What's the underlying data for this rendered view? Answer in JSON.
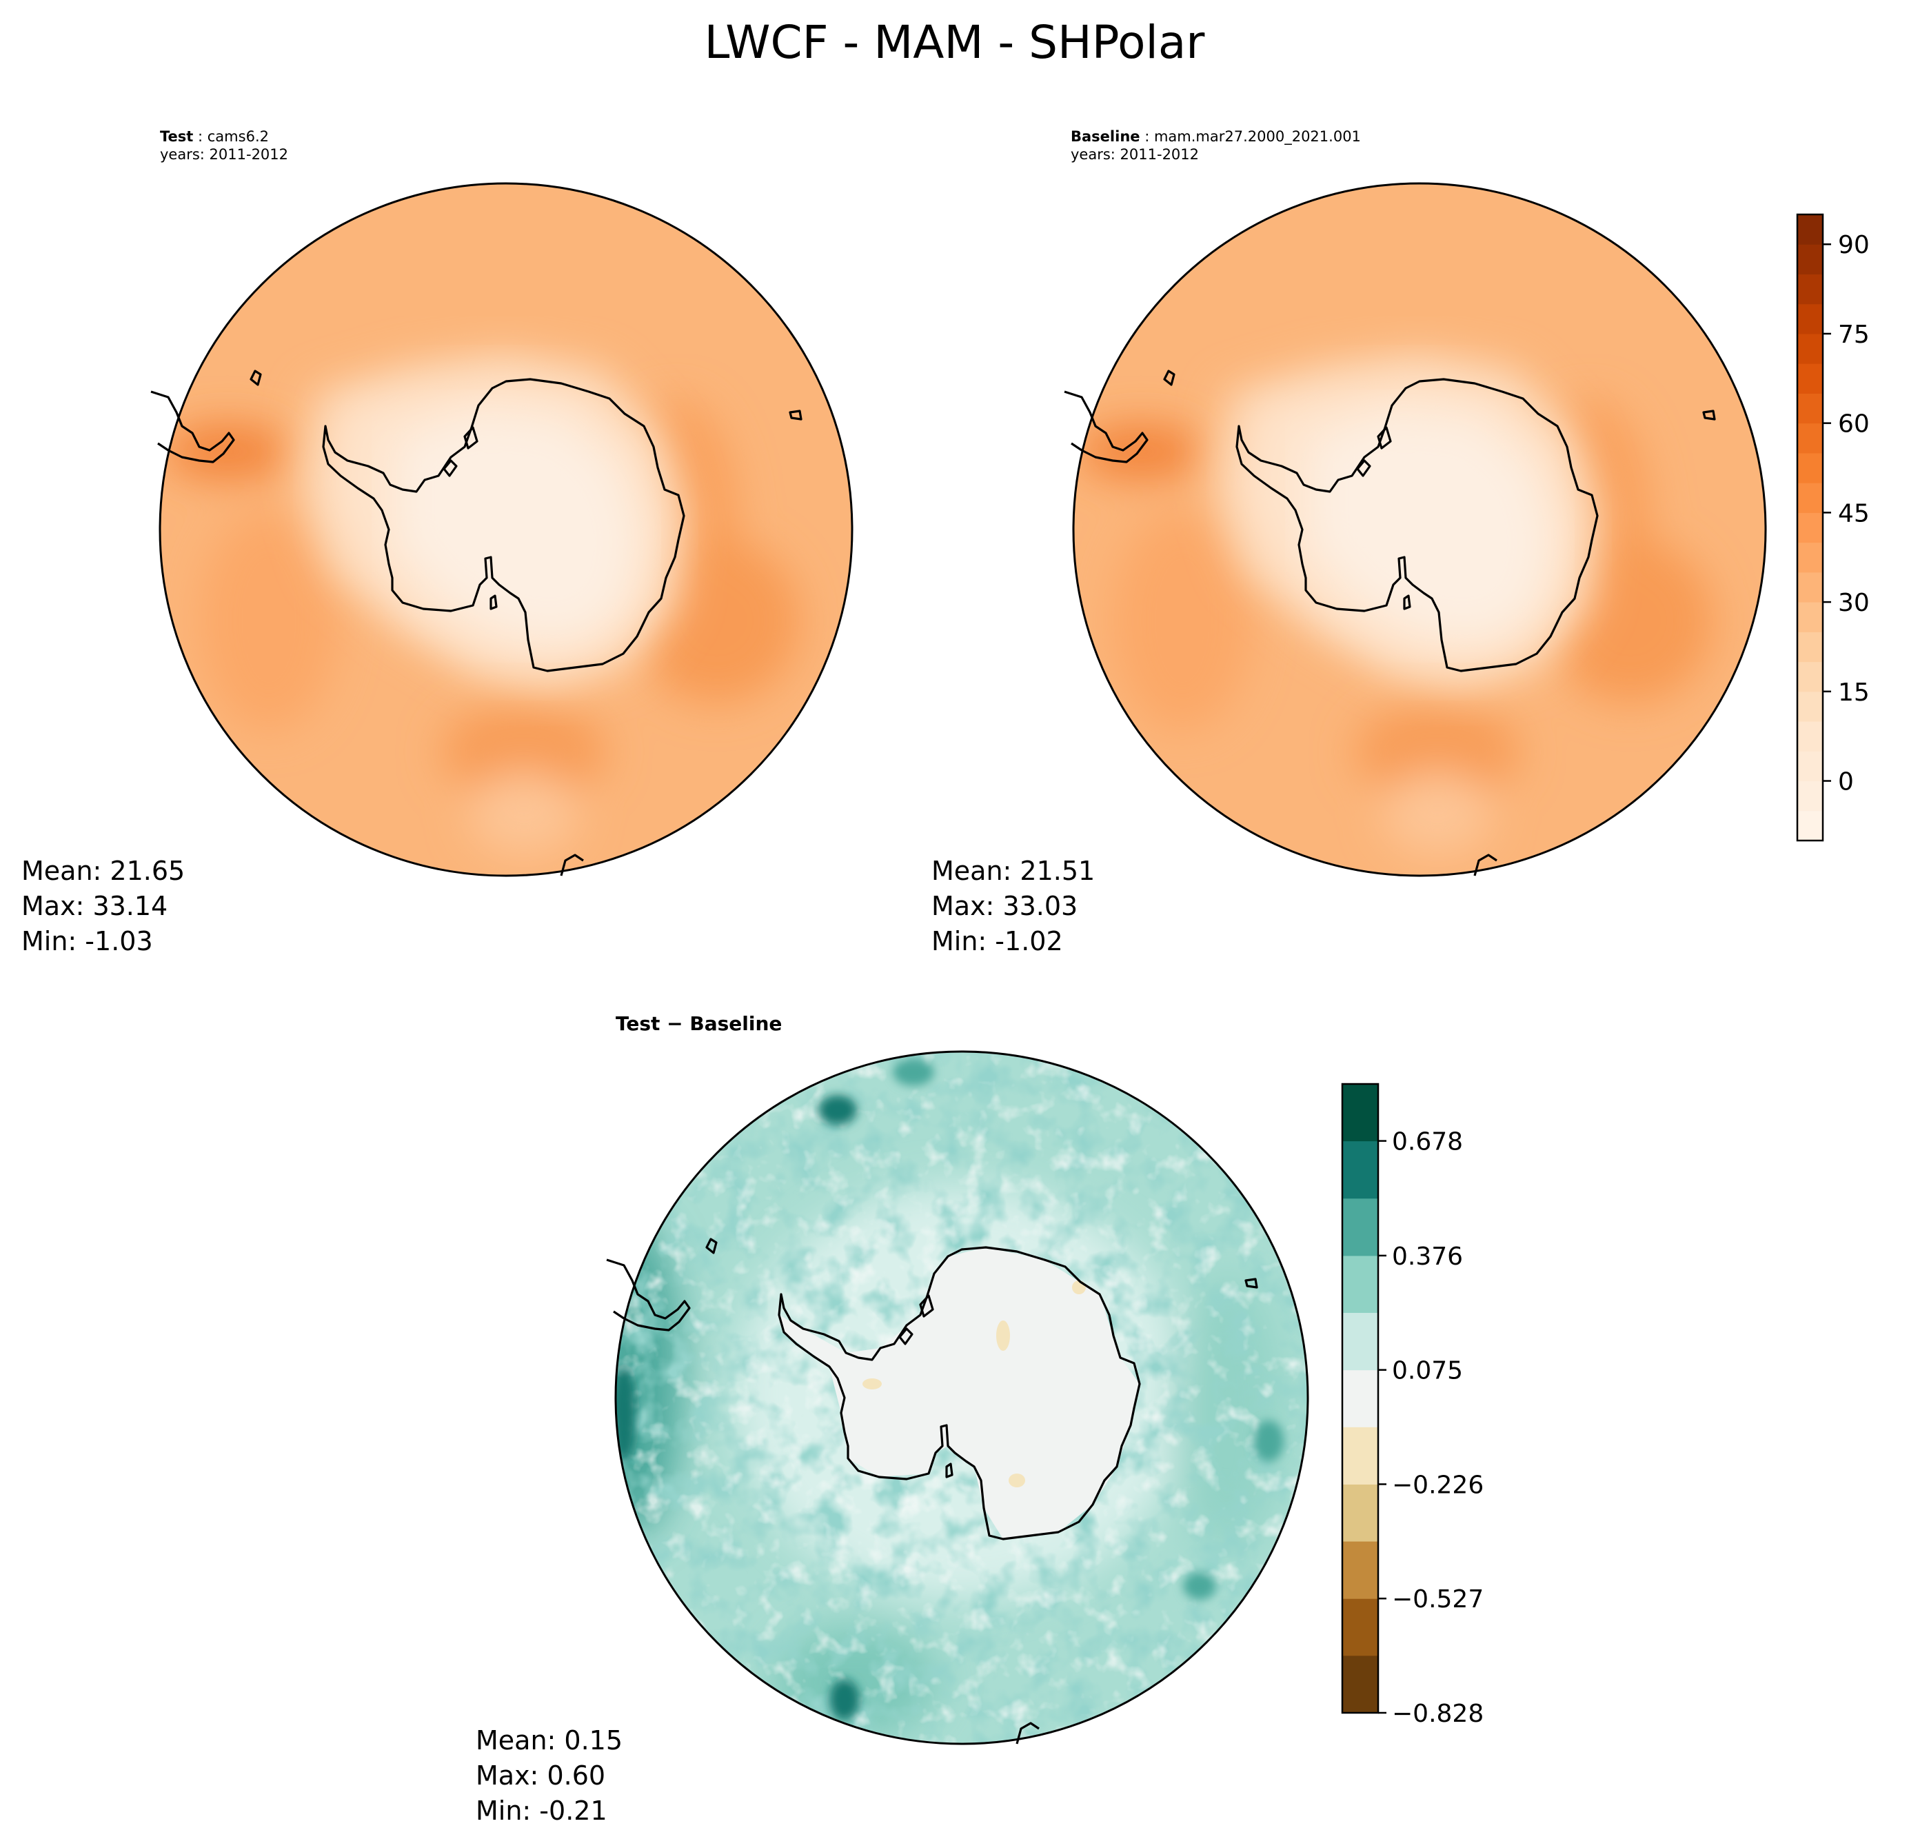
{
  "figure_title": "LWCF - MAM - SHPolar",
  "panels": {
    "test": {
      "case_label": "Test",
      "case_name": "cams6.2",
      "years": "years: 2011-2012",
      "stats": {
        "mean": "Mean: 21.65",
        "max": "Max: 33.14",
        "min": "Min: -1.03"
      }
    },
    "baseline": {
      "case_label": "Baseline",
      "case_name": "mam.mar27.2000_2021.001",
      "years": "years: 2011-2012",
      "stats": {
        "mean": "Mean: 21.51",
        "max": "Max: 33.03",
        "min": "Min: -1.02"
      }
    },
    "diff": {
      "title": "Test − Baseline",
      "stats": {
        "mean": "Mean:  0.15",
        "max": "Max:  0.60",
        "min": "Min: -0.21"
      }
    }
  },
  "colors": {
    "oranges": [
      "#fff5eb",
      "#feeddc",
      "#fee6ce",
      "#fdd9b4",
      "#fdc895",
      "#fdb173",
      "#fd9a53",
      "#f88432",
      "#ec6b1c",
      "#dc5208",
      "#c14102",
      "#9c3102",
      "#7f2704"
    ],
    "brbg": [
      "#6b3e0c",
      "#985a14",
      "#c28a3c",
      "#dfc585",
      "#f4e4bd",
      "#f1f3f2",
      "#cae9e3",
      "#8fd2c4",
      "#4ca99c",
      "#137870",
      "#01513f"
    ]
  },
  "chart_data": [
    {
      "type": "heatmap",
      "projection": "south-polar-stereographic",
      "title": "Test : cams6.2",
      "years": "2011-2012",
      "field_summary": {
        "antarctic_interior": [
          -1,
          8
        ],
        "coastal_ring": [
          10,
          20
        ],
        "southern_ocean": [
          20,
          30
        ],
        "local_maximum_near_south_america": 33.14
      },
      "mean": 21.65,
      "max": 33.14,
      "min": -1.03
    },
    {
      "type": "heatmap",
      "projection": "south-polar-stereographic",
      "title": "Baseline : mam.mar27.2000_2021.001",
      "years": "2011-2012",
      "field_summary": {
        "antarctic_interior": [
          -1,
          8
        ],
        "coastal_ring": [
          10,
          20
        ],
        "southern_ocean": [
          20,
          30
        ],
        "local_maximum_near_south_america": 33.03
      },
      "mean": 21.51,
      "max": 33.03,
      "min": -1.02,
      "colorbar": {
        "levels_min": -10,
        "levels_max": 95,
        "step": 5,
        "ticks": [
          0,
          15,
          30,
          45,
          60,
          75,
          90
        ],
        "tick_labels": [
          "0",
          "15",
          "30",
          "45",
          "60",
          "75",
          "90"
        ]
      }
    },
    {
      "type": "heatmap",
      "projection": "south-polar-stereographic",
      "title": "Test − Baseline",
      "field_summary": {
        "antarctic_interior": [
          -0.05,
          0.05
        ],
        "southern_ocean": [
          0.1,
          0.45
        ],
        "maxima_along_west_rim": [
          0.45,
          0.6
        ]
      },
      "mean": 0.15,
      "max": 0.6,
      "min": -0.21,
      "colorbar": {
        "boundaries": [
          -0.828,
          -0.677,
          -0.527,
          -0.376,
          -0.226,
          -0.075,
          0.075,
          0.226,
          0.376,
          0.527,
          0.678,
          0.828
        ],
        "ticks": [
          -0.828,
          -0.527,
          -0.226,
          0.075,
          0.376,
          0.678
        ],
        "tick_labels": [
          "−0.828",
          "−0.527",
          "−0.226",
          "0.075",
          "0.376",
          "0.678"
        ]
      }
    }
  ]
}
